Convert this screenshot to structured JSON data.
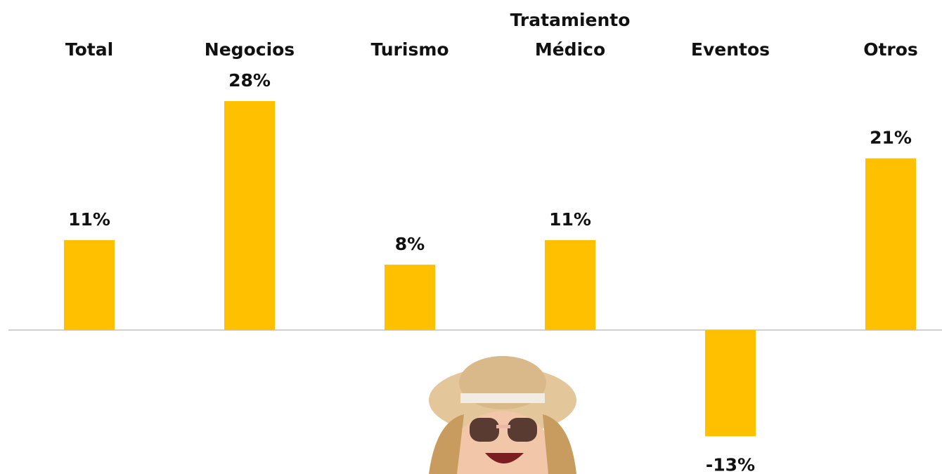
{
  "chart_data": {
    "type": "bar",
    "categories": [
      "Total",
      "Negocios",
      "Turismo",
      "Tratamiento Médico",
      "Eventos",
      "Otros"
    ],
    "values": [
      11,
      28,
      8,
      11,
      -13,
      21
    ],
    "value_labels": [
      "11%",
      "28%",
      "8%",
      "11%",
      "-13%",
      "21%"
    ],
    "color": "#FFC000"
  }
}
